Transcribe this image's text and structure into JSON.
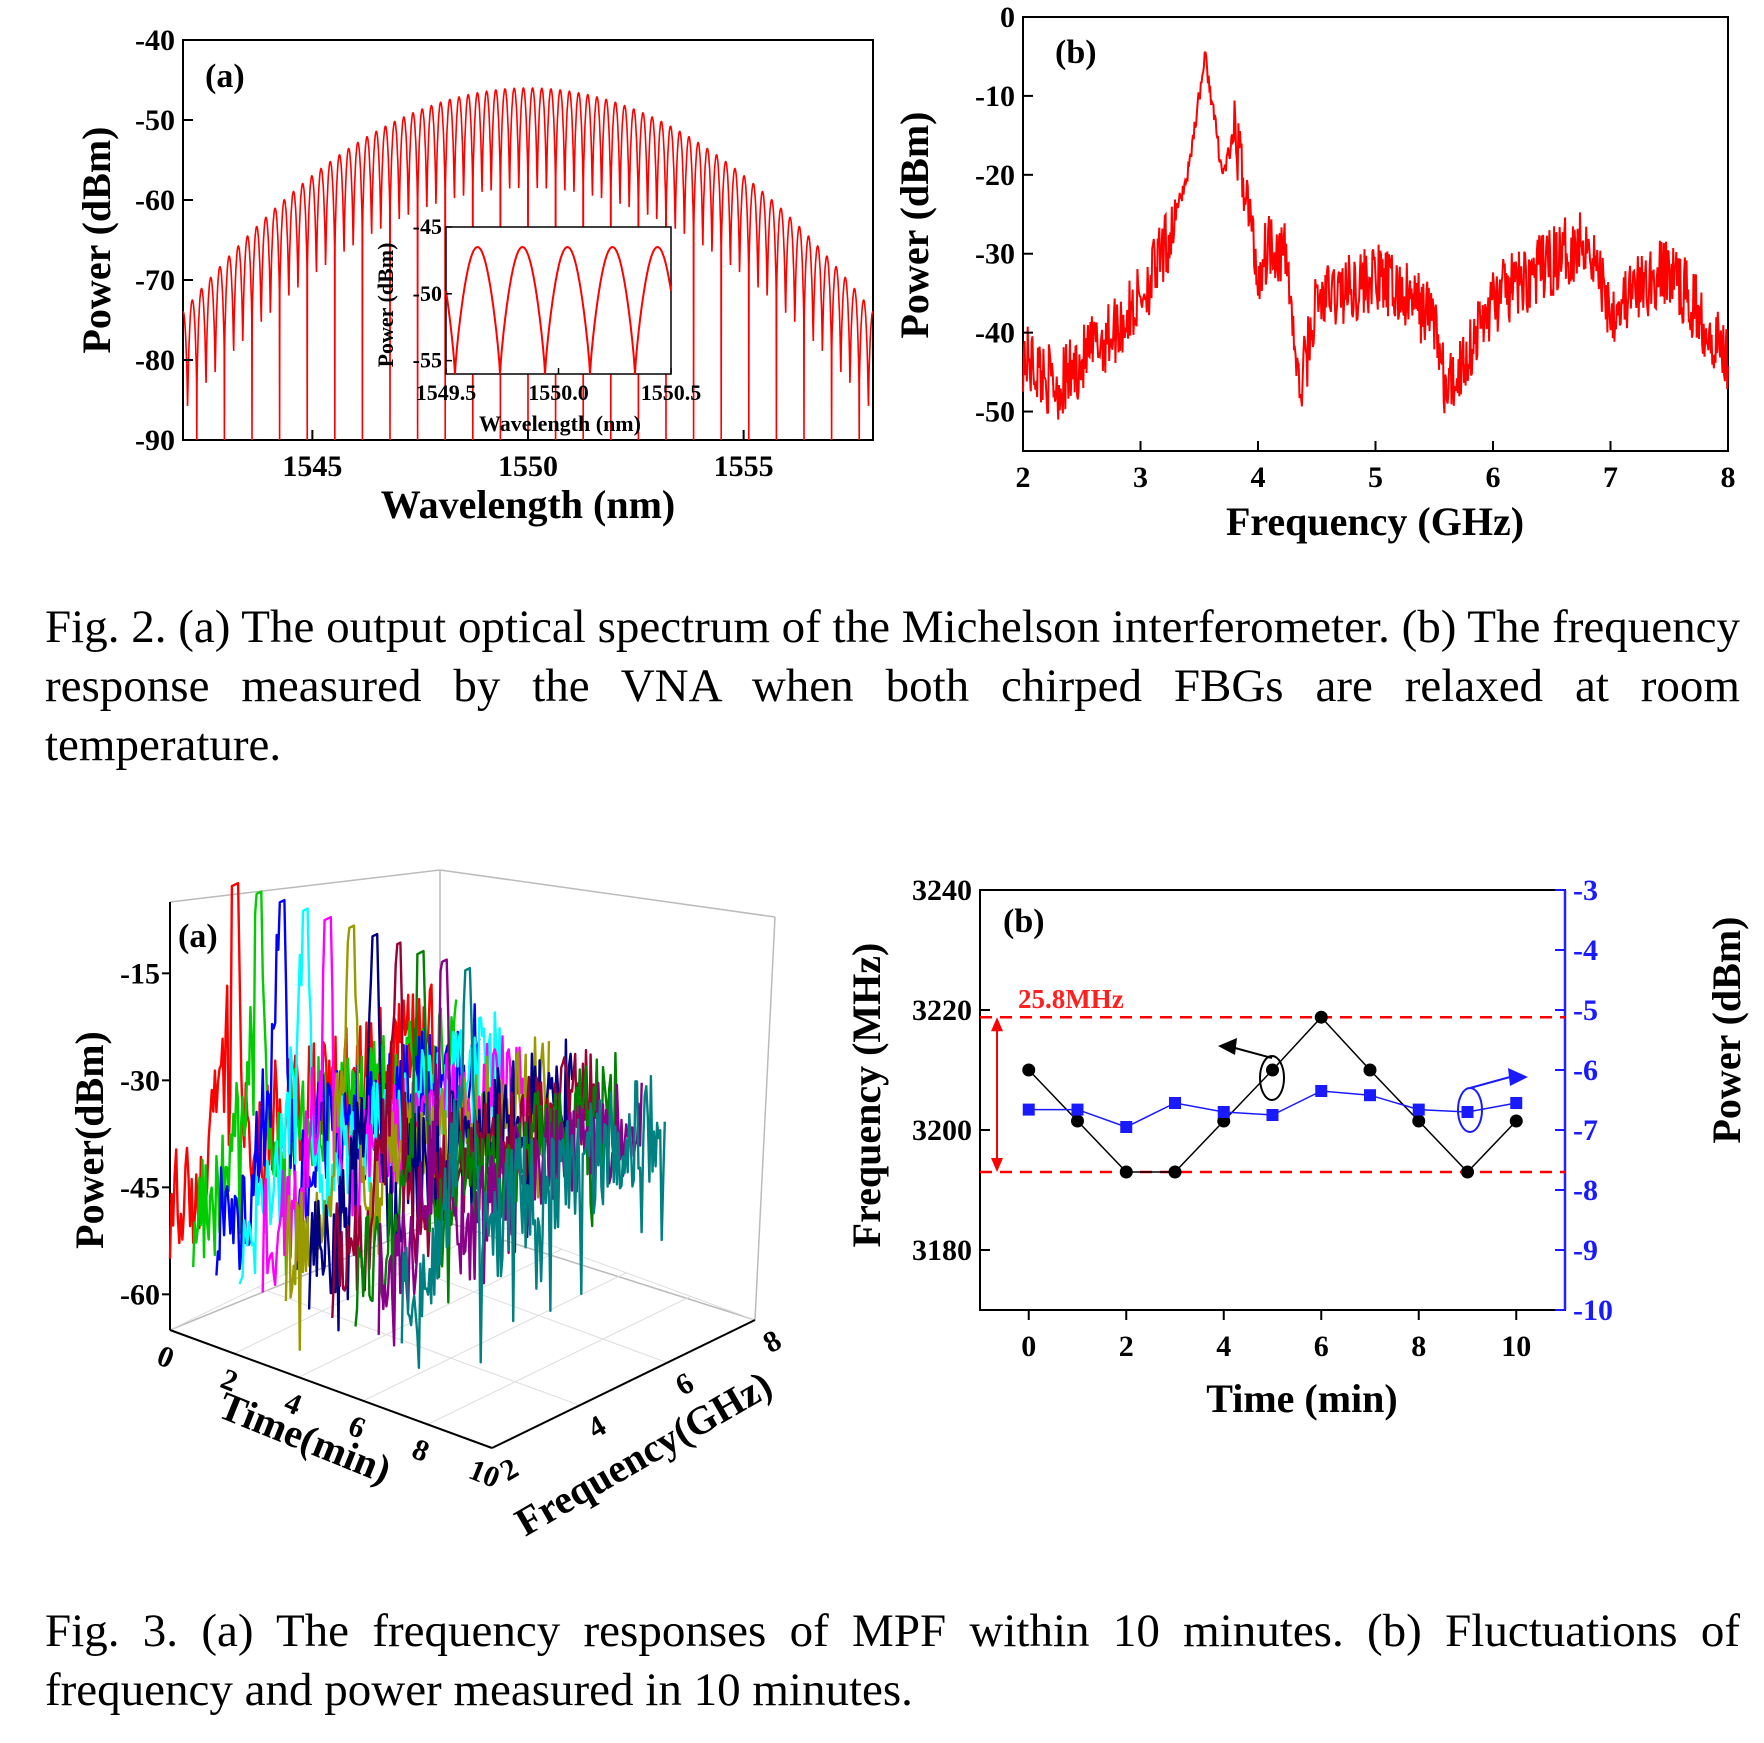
{
  "fig2": {
    "caption": "Fig. 2.   (a) The output optical spectrum of the Michelson interferometer. (b) The frequency response measured by the VNA when both chirped FBGs are relaxed at room temperature.",
    "a": {
      "panel_label": "(a)",
      "xlabel": "Wavelength (nm)",
      "ylabel": "Power (dBm)",
      "xticks": [
        "1545",
        "1550",
        "1555"
      ],
      "yticks": [
        "-40",
        "-50",
        "-60",
        "-70",
        "-80",
        "-90"
      ],
      "inset": {
        "xlabel": "Wavelength (nm)",
        "ylabel": "Power (dBm)",
        "xticks": [
          "1549.5",
          "1550.0",
          "1550.5"
        ],
        "yticks": [
          "-45",
          "-50",
          "-55"
        ]
      }
    },
    "b": {
      "panel_label": "(b)",
      "xlabel": "Frequency (GHz)",
      "ylabel": "Power (dBm)",
      "xticks": [
        "2",
        "3",
        "4",
        "5",
        "6",
        "7",
        "8"
      ],
      "yticks": [
        "0",
        "-10",
        "-20",
        "-30",
        "-40",
        "-50"
      ]
    }
  },
  "fig3": {
    "caption": "Fig. 3.   (a) The frequency responses of MPF within 10 minutes. (b) Fluctuations of frequency and power measured in 10 minutes.",
    "a": {
      "panel_label": "(a)",
      "zlabel": "Power(dBm)",
      "xlabel": "Time(min)",
      "ylabel": "Frequency(GHz)",
      "zticks": [
        "-15",
        "-30",
        "-45",
        "-60"
      ],
      "time_ticks": [
        "0",
        "2",
        "4",
        "6",
        "8",
        "10"
      ],
      "freq_ticks": [
        "2",
        "4",
        "6",
        "8"
      ]
    },
    "b": {
      "panel_label": "(b)",
      "annotation": "25.8MHz",
      "xlabel": "Time (min)",
      "ylabel_left": "Frequency (MHz)",
      "ylabel_right": "Power (dBm)",
      "xticks": [
        "0",
        "2",
        "4",
        "6",
        "8",
        "10"
      ],
      "yticks_left": [
        "3240",
        "3220",
        "3200",
        "3180"
      ],
      "yticks_right": [
        "-3",
        "-4",
        "-5",
        "-6",
        "-7",
        "-8",
        "-9",
        "-10"
      ]
    }
  },
  "chart_data": [
    {
      "id": "fig2a",
      "type": "line",
      "xlabel": "Wavelength (nm)",
      "ylabel": "Power (dBm)",
      "xlim": [
        1542,
        1558
      ],
      "ylim": [
        -90,
        -40
      ],
      "series": [
        {
          "envelope_peak_dBm": -46,
          "envelope_peak_nm": 1550,
          "edge_dBm": -74,
          "fringe_count": 75,
          "fringe_depth_dB": 14,
          "color": "#ff0000"
        }
      ]
    },
    {
      "id": "fig2a_inset",
      "type": "line",
      "xlim": [
        1549.5,
        1550.5
      ],
      "ylim": [
        -56,
        -45
      ],
      "series": [
        {
          "fringe_period_nm": 0.2,
          "max_dBm": -46.5,
          "min_dBm": -56,
          "color": "#ff0000"
        }
      ]
    },
    {
      "id": "fig2b",
      "type": "line",
      "xlabel": "Frequency (GHz)",
      "ylabel": "Power (dBm)",
      "xlim": [
        2,
        8
      ],
      "ylim": [
        -55,
        0
      ],
      "series": [
        {
          "color": "#ff0000",
          "x": [
            2.0,
            2.3,
            2.6,
            2.9,
            3.2,
            3.4,
            3.5,
            3.55,
            3.6,
            3.7,
            3.8,
            3.9,
            4.0,
            4.1,
            4.25,
            4.35,
            4.5,
            5.0,
            5.5,
            5.6,
            6.0,
            6.5,
            6.8,
            7.0,
            7.5,
            8.0
          ],
          "y": [
            -43,
            -47,
            -42,
            -38,
            -30,
            -20,
            -10,
            -5,
            -10,
            -20,
            -15,
            -22,
            -33,
            -28,
            -31,
            -48,
            -36,
            -33,
            -38,
            -48,
            -36,
            -31,
            -28,
            -37,
            -32,
            -43
          ]
        }
      ]
    },
    {
      "id": "fig3a",
      "type": "line",
      "xlabel": "Time(min)",
      "ylabel": "Frequency(GHz)",
      "zlabel": "Power(dBm)",
      "time_min": [
        0,
        1,
        2,
        3,
        4,
        5,
        6,
        7,
        8,
        9,
        10
      ],
      "zlim": [
        -65,
        -5
      ],
      "series_colors": [
        "#ff0000",
        "#00cc00",
        "#0000ff",
        "#00ffff",
        "#ff00ff",
        "#999900",
        "#000080",
        "#990033",
        "#008000",
        "#880088",
        "#008080"
      ]
    },
    {
      "id": "fig3b",
      "type": "line",
      "xlabel": "Time (min)",
      "xlim": [
        -1,
        11
      ],
      "series": [
        {
          "name": "",
          "axis": "left",
          "color": "#000000",
          "ylim": [
            3170,
            3240
          ],
          "x": [
            0,
            1,
            2,
            3,
            4,
            5,
            6,
            7,
            8,
            9,
            10
          ],
          "y": [
            3210,
            3201.5,
            3193,
            3193,
            3201.5,
            3210,
            3218.8,
            3210,
            3201.5,
            3193,
            3201.5
          ]
        },
        {
          "name": "",
          "axis": "right",
          "color": "#1a1aff",
          "ylim": [
            -10,
            -3
          ],
          "x": [
            0,
            1,
            2,
            3,
            4,
            5,
            6,
            7,
            8,
            9,
            10
          ],
          "y": [
            -6.66,
            -6.66,
            -6.95,
            -6.55,
            -6.7,
            -6.75,
            -6.35,
            -6.42,
            -6.66,
            -6.7,
            -6.55
          ]
        }
      ],
      "reference_lines": [
        3218.8,
        3193
      ],
      "reference_line_color": "#ff0000",
      "annotation_color": "#ff0000"
    }
  ]
}
